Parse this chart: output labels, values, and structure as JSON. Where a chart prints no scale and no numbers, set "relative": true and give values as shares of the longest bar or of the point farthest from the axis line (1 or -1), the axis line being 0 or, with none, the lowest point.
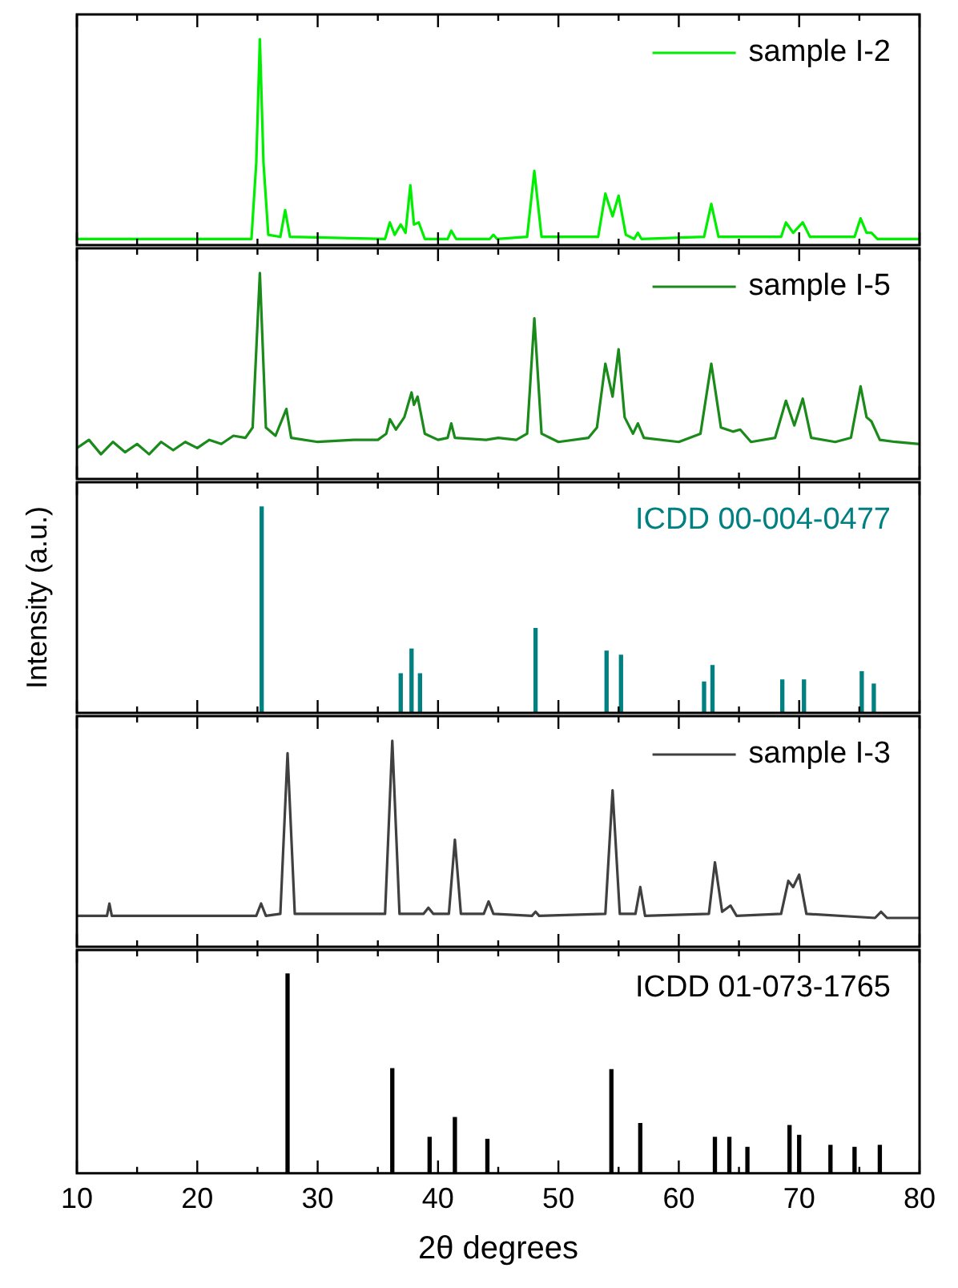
{
  "chart_data": [
    {
      "type": "line",
      "relative": true,
      "xlim": [
        10,
        80
      ],
      "xticks": [
        10,
        {
          "value": 15,
          "label": null
        },
        20,
        {
          "value": 25,
          "label": null
        },
        30,
        {
          "value": 35,
          "label": null
        },
        40,
        {
          "value": 45,
          "label": null
        },
        50,
        {
          "value": 55,
          "label": null
        },
        60,
        {
          "value": 65,
          "label": null
        },
        70,
        {
          "value": 75,
          "label": null
        },
        80
      ],
      "tick_labels": false,
      "legend": "top right",
      "x": [
        10,
        24.5,
        24.9,
        25.2,
        25.5,
        25.9,
        26.9,
        27.3,
        27.7,
        35.6,
        36.0,
        36.4,
        36.9,
        37.3,
        37.7,
        38.0,
        38.4,
        38.9,
        40.8,
        41.1,
        41.5,
        44.3,
        44.6,
        44.9,
        47.4,
        48.0,
        48.6,
        53.3,
        53.9,
        54.5,
        55.0,
        55.6,
        56.3,
        56.6,
        56.9,
        62.1,
        62.7,
        63.3,
        68.5,
        68.9,
        69.5,
        70.3,
        70.9,
        74.6,
        75.1,
        75.6,
        76.0,
        76.5,
        80
      ],
      "series": [
        {
          "name": "sample I-2",
          "color": "#00ee00",
          "values": [
            0.03,
            0.03,
            0.4,
            1.0,
            0.4,
            0.05,
            0.04,
            0.17,
            0.04,
            0.03,
            0.11,
            0.05,
            0.1,
            0.06,
            0.29,
            0.1,
            0.11,
            0.03,
            0.03,
            0.07,
            0.03,
            0.03,
            0.05,
            0.03,
            0.04,
            0.36,
            0.04,
            0.04,
            0.25,
            0.14,
            0.24,
            0.05,
            0.03,
            0.06,
            0.03,
            0.04,
            0.2,
            0.04,
            0.04,
            0.11,
            0.06,
            0.11,
            0.04,
            0.04,
            0.13,
            0.06,
            0.06,
            0.03,
            0.03
          ]
        }
      ]
    },
    {
      "type": "line",
      "relative": true,
      "xlim": [
        10,
        80
      ],
      "xticks": [
        10,
        {
          "value": 15,
          "label": null
        },
        20,
        {
          "value": 25,
          "label": null
        },
        30,
        {
          "value": 35,
          "label": null
        },
        40,
        {
          "value": 45,
          "label": null
        },
        50,
        {
          "value": 55,
          "label": null
        },
        60,
        {
          "value": 65,
          "label": null
        },
        70,
        {
          "value": 75,
          "label": null
        },
        80
      ],
      "tick_labels": false,
      "legend": "top right",
      "x": [
        10,
        11,
        12,
        13,
        14,
        15,
        16,
        17,
        18,
        19,
        20,
        21,
        22,
        23,
        24,
        24.6,
        25.2,
        25.7,
        26.5,
        27.4,
        27.8,
        30,
        33,
        35,
        35.7,
        36.0,
        36.5,
        37.2,
        37.8,
        38.0,
        38.3,
        38.9,
        40.0,
        40.8,
        41.1,
        41.4,
        44,
        45,
        46.5,
        47.4,
        48.0,
        48.6,
        50,
        52.5,
        53.2,
        53.9,
        54.5,
        55.0,
        55.5,
        56.2,
        56.6,
        57.1,
        60,
        61.8,
        62.7,
        63.5,
        64.5,
        65.1,
        66,
        68.0,
        68.9,
        69.6,
        70.3,
        71.0,
        73,
        74.3,
        75.1,
        75.6,
        76.0,
        76.7,
        78,
        80
      ],
      "series": [
        {
          "name": "sample I-5",
          "color": "#1a8a1a",
          "values": [
            0.15,
            0.19,
            0.12,
            0.18,
            0.13,
            0.17,
            0.12,
            0.18,
            0.14,
            0.18,
            0.15,
            0.19,
            0.17,
            0.21,
            0.2,
            0.25,
            1.0,
            0.25,
            0.21,
            0.34,
            0.2,
            0.18,
            0.19,
            0.19,
            0.22,
            0.29,
            0.24,
            0.3,
            0.42,
            0.36,
            0.4,
            0.22,
            0.19,
            0.2,
            0.27,
            0.2,
            0.19,
            0.2,
            0.19,
            0.22,
            0.78,
            0.22,
            0.18,
            0.2,
            0.25,
            0.56,
            0.4,
            0.63,
            0.3,
            0.22,
            0.27,
            0.2,
            0.18,
            0.22,
            0.56,
            0.25,
            0.23,
            0.24,
            0.18,
            0.2,
            0.38,
            0.26,
            0.39,
            0.2,
            0.18,
            0.2,
            0.45,
            0.3,
            0.28,
            0.19,
            0.18,
            0.17
          ]
        }
      ]
    },
    {
      "type": "bar",
      "relative": true,
      "ylabel": "Intensity (a.u.)",
      "xlim": [
        10,
        80
      ],
      "xticks": [
        10,
        {
          "value": 15,
          "label": null
        },
        20,
        {
          "value": 25,
          "label": null
        },
        30,
        {
          "value": 35,
          "label": null
        },
        40,
        {
          "value": 45,
          "label": null
        },
        50,
        {
          "value": 55,
          "label": null
        },
        60,
        {
          "value": 65,
          "label": null
        },
        70,
        {
          "value": 75,
          "label": null
        },
        80
      ],
      "tick_labels": false,
      "x": [
        25.35,
        36.9,
        37.8,
        38.5,
        48.1,
        54.0,
        55.2,
        62.1,
        62.8,
        68.6,
        70.4,
        75.2,
        76.2
      ],
      "series": [
        {
          "name": "ICDD 00-004-0477",
          "color": "#008080",
          "values": [
            1.0,
            0.19,
            0.31,
            0.19,
            0.41,
            0.3,
            0.28,
            0.15,
            0.23,
            0.16,
            0.16,
            0.2,
            0.14
          ]
        }
      ]
    },
    {
      "type": "line",
      "relative": true,
      "xlim": [
        10,
        80
      ],
      "xticks": [
        10,
        {
          "value": 15,
          "label": null
        },
        20,
        {
          "value": 25,
          "label": null
        },
        30,
        {
          "value": 35,
          "label": null
        },
        40,
        {
          "value": 45,
          "label": null
        },
        50,
        {
          "value": 55,
          "label": null
        },
        60,
        {
          "value": 65,
          "label": null
        },
        70,
        {
          "value": 75,
          "label": null
        },
        80
      ],
      "tick_labels": false,
      "legend": "top right",
      "x": [
        10,
        12.5,
        12.7,
        12.9,
        20,
        24.9,
        25.3,
        25.7,
        26.9,
        27.5,
        28.1,
        35.6,
        36.2,
        36.8,
        38.8,
        39.2,
        39.6,
        40.9,
        41.4,
        41.9,
        43.8,
        44.2,
        44.6,
        47.8,
        48.1,
        48.4,
        53.9,
        54.5,
        55.1,
        56.4,
        56.8,
        57.2,
        62.5,
        63.0,
        63.6,
        64.3,
        64.8,
        68.5,
        69.1,
        69.5,
        70.0,
        70.6,
        76.3,
        76.8,
        77.3,
        80
      ],
      "series": [
        {
          "name": "sample I-3",
          "color": "#404040",
          "values": [
            0.15,
            0.15,
            0.21,
            0.15,
            0.15,
            0.15,
            0.21,
            0.15,
            0.16,
            0.94,
            0.16,
            0.16,
            1.0,
            0.16,
            0.16,
            0.19,
            0.16,
            0.16,
            0.52,
            0.16,
            0.16,
            0.22,
            0.16,
            0.15,
            0.17,
            0.15,
            0.16,
            0.76,
            0.16,
            0.16,
            0.29,
            0.15,
            0.16,
            0.41,
            0.17,
            0.2,
            0.15,
            0.16,
            0.32,
            0.29,
            0.35,
            0.16,
            0.14,
            0.17,
            0.14,
            0.14
          ]
        }
      ]
    },
    {
      "type": "bar",
      "relative": true,
      "xlabel": "2θ degrees",
      "xlim": [
        10,
        80
      ],
      "xticks": [
        10,
        {
          "value": 15,
          "label": null
        },
        20,
        {
          "value": 25,
          "label": null
        },
        30,
        {
          "value": 35,
          "label": null
        },
        40,
        {
          "value": 45,
          "label": null
        },
        50,
        {
          "value": 55,
          "label": null
        },
        60,
        {
          "value": 65,
          "label": null
        },
        70,
        {
          "value": 75,
          "label": null
        },
        80
      ],
      "tick_labels": "x",
      "x": [
        27.5,
        36.2,
        39.3,
        41.4,
        44.1,
        54.4,
        56.8,
        63.0,
        64.2,
        65.7,
        69.2,
        70.0,
        72.6,
        74.6,
        76.7
      ],
      "series": [
        {
          "name": "ICDD 01-073-1765",
          "color": "#000000",
          "values": [
            1.0,
            0.525,
            0.18,
            0.28,
            0.17,
            0.52,
            0.25,
            0.18,
            0.18,
            0.13,
            0.24,
            0.19,
            0.14,
            0.13,
            0.14
          ]
        }
      ]
    }
  ]
}
